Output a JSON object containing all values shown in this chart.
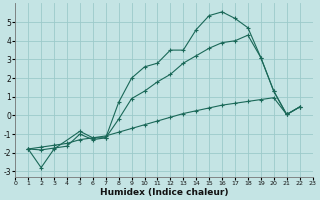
{
  "background_color": "#c4e4e4",
  "grid_color": "#9ccaca",
  "line_color": "#1a6858",
  "xlabel": "Humidex (Indice chaleur)",
  "xlim": [
    0,
    23
  ],
  "ylim": [
    -3.3,
    6.0
  ],
  "yticks": [
    -3,
    -2,
    -1,
    0,
    1,
    2,
    3,
    4,
    5
  ],
  "xticks": [
    0,
    1,
    2,
    3,
    4,
    5,
    6,
    7,
    8,
    9,
    10,
    11,
    12,
    13,
    14,
    15,
    16,
    17,
    18,
    19,
    20,
    21,
    22,
    23
  ],
  "line1_x": [
    1,
    2,
    3,
    4,
    5,
    6,
    7,
    8,
    9,
    10,
    11,
    12,
    13,
    14,
    15,
    16,
    17,
    18,
    19,
    20,
    21,
    22
  ],
  "line1_y": [
    -1.8,
    -1.7,
    -1.6,
    -1.5,
    -1.3,
    -1.2,
    -1.1,
    -0.9,
    -0.7,
    -0.5,
    -0.3,
    -0.1,
    0.1,
    0.25,
    0.4,
    0.55,
    0.65,
    0.75,
    0.85,
    0.95,
    0.05,
    0.45
  ],
  "line2_x": [
    1,
    2,
    3,
    5,
    6,
    7,
    8,
    9,
    10,
    11,
    12,
    13,
    14,
    15,
    16,
    17,
    18,
    19,
    20,
    21,
    22
  ],
  "line2_y": [
    -1.8,
    -2.8,
    -1.8,
    -0.85,
    -1.2,
    -1.2,
    0.7,
    2.0,
    2.6,
    2.8,
    3.5,
    3.5,
    4.6,
    5.35,
    5.55,
    5.2,
    4.7,
    3.1,
    1.3,
    0.05,
    0.45
  ],
  "line3_x": [
    1,
    2,
    3,
    4,
    5,
    6,
    7,
    8,
    9,
    10,
    11,
    12,
    13,
    14,
    15,
    16,
    17,
    18,
    19,
    20,
    21,
    22
  ],
  "line3_y": [
    -1.8,
    -1.85,
    -1.75,
    -1.65,
    -1.0,
    -1.3,
    -1.2,
    -0.2,
    0.9,
    1.3,
    1.8,
    2.2,
    2.8,
    3.2,
    3.6,
    3.9,
    4.0,
    4.3,
    3.1,
    1.3,
    0.05,
    0.45
  ]
}
